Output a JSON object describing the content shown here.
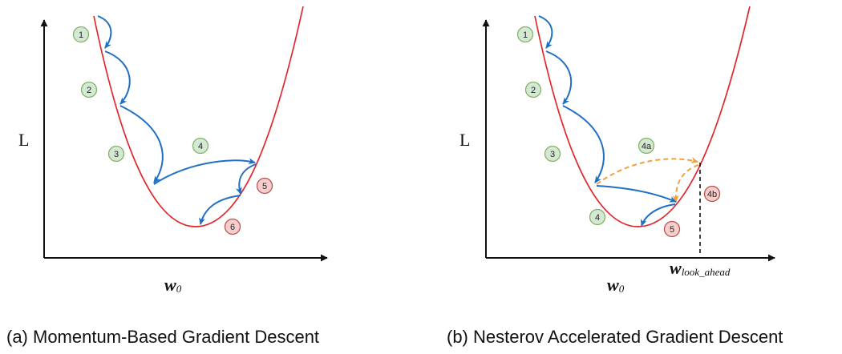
{
  "panels": [
    {
      "id": "momentum",
      "y_axis_label": "L",
      "x_axis_label": "w",
      "x_axis_subscript": "0",
      "caption": "(a) Momentum-Based Gradient Descent",
      "step_badges": [
        {
          "label": "1",
          "kind": "normal"
        },
        {
          "label": "2",
          "kind": "normal"
        },
        {
          "label": "3",
          "kind": "normal"
        },
        {
          "label": "4",
          "kind": "normal"
        },
        {
          "label": "5",
          "kind": "overshoot"
        },
        {
          "label": "6",
          "kind": "overshoot"
        }
      ]
    },
    {
      "id": "nesterov",
      "y_axis_label": "L",
      "x_axis_label": "w",
      "x_axis_subscript": "0",
      "lookahead_label": "w",
      "lookahead_subscript": "look_ahead",
      "caption": "(b) Nesterov Accelerated Gradient Descent",
      "step_badges": [
        {
          "label": "1",
          "kind": "normal"
        },
        {
          "label": "2",
          "kind": "normal"
        },
        {
          "label": "3",
          "kind": "normal"
        },
        {
          "label": "4a",
          "kind": "normal"
        },
        {
          "label": "4b",
          "kind": "overshoot"
        },
        {
          "label": "4",
          "kind": "normal"
        },
        {
          "label": "5",
          "kind": "overshoot"
        }
      ]
    }
  ],
  "colors": {
    "curve": "#e0282e",
    "step_arrow": "#1f6fc4",
    "lookahead_arrow": "#f0a040",
    "badge_normal_fill": "#d5e8d4",
    "badge_normal_stroke": "#82b366",
    "badge_overshoot_fill": "#f8cecc",
    "badge_overshoot_stroke": "#b85450",
    "axis": "#111111"
  }
}
